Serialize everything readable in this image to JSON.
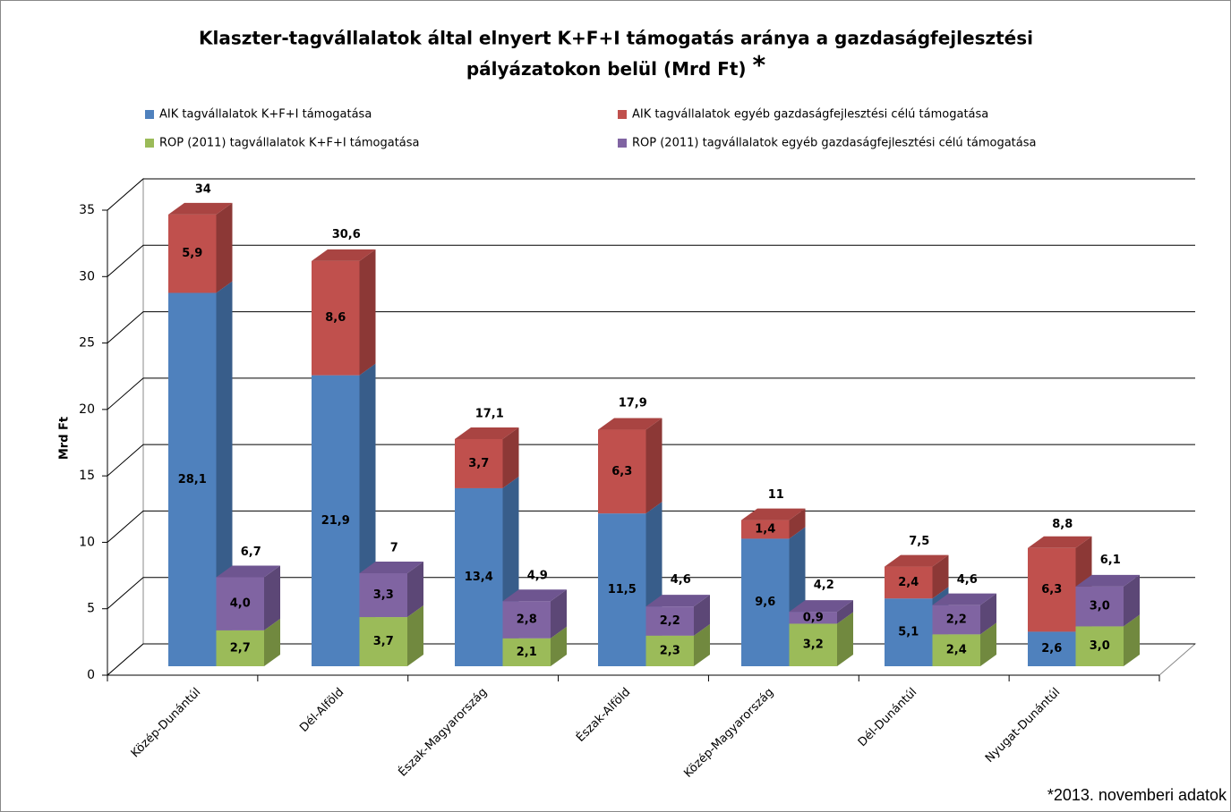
{
  "chart_data": {
    "type": "bar3d",
    "title": [
      "Klaszter-tagvállalatok által elnyert K+F+I támogatás aránya a gazdaságfejlesztési",
      "pályázatokon belül (Mrd Ft)"
    ],
    "title_mark": "*",
    "y_label": "Mrd Ft",
    "footnote": "*2013. novemberi adatok",
    "categories": [
      "Közép-Dunántúl",
      "Dél-Alföld",
      "Észak-Magyarország",
      "Észak-Alföld",
      "Közép-Magyarország",
      "Dél-Dunántúl",
      "Nyugat-Dunántúl"
    ],
    "series": [
      {
        "name": "AIK tagvállalatok K+F+I támogatása",
        "color": "#4f81bd",
        "side": "#385d8a",
        "top": "#6c97cc",
        "values": [
          28.1,
          21.9,
          13.4,
          11.5,
          9.6,
          5.1,
          2.6
        ],
        "value_labels": [
          "28,1",
          "21,9",
          "13,4",
          "11,5",
          "9,6",
          "5,1",
          "2,6"
        ]
      },
      {
        "name": "AIK tagvállalatok egyéb gazdaságfejlesztési célú támogatása",
        "color": "#c0504d",
        "side": "#8c3836",
        "top": "#a94442",
        "values": [
          5.9,
          8.6,
          3.7,
          6.3,
          1.4,
          2.4,
          6.3
        ],
        "value_labels": [
          "5,9",
          "8,6",
          "3,7",
          "6,3",
          "1,4",
          "2,4",
          "6,3"
        ]
      },
      {
        "name": "ROP (2011) tagvállalatok K+F+I támogatása",
        "color": "#9bbb59",
        "side": "#71893f",
        "top": "#b0cc78",
        "values": [
          2.7,
          3.7,
          2.1,
          2.3,
          3.2,
          2.4,
          3.0
        ],
        "value_labels": [
          "2,7",
          "3,7",
          "2,1",
          "2,3",
          "3,2",
          "2,4",
          "3,0"
        ]
      },
      {
        "name": "ROP (2011) tagvállalatok egyéb gazdaságfejlesztési célú támogatása",
        "color": "#8064a2",
        "side": "#5c4776",
        "top": "#6e5590",
        "values": [
          4.0,
          3.3,
          2.8,
          2.2,
          0.9,
          2.2,
          3.0
        ],
        "value_labels": [
          "4,0",
          "3,3",
          "2,8",
          "2,2",
          "0,9",
          "2,2",
          "3,0"
        ]
      }
    ],
    "totals": [
      {
        "values": [
          34,
          30.6,
          17.1,
          17.9,
          11,
          7.5,
          8.8
        ],
        "value_labels": [
          "34",
          "30,6",
          "17,1",
          "17,9",
          "11",
          "7,5",
          "8,8"
        ]
      },
      {
        "values": [
          6.7,
          7,
          4.9,
          4.6,
          4.2,
          4.6,
          6.1
        ],
        "value_labels": [
          "6,7",
          "7",
          "4,9",
          "4,6",
          "4,2",
          "4,6",
          "6,1"
        ]
      }
    ],
    "ylim": [
      0,
      35
    ],
    "yticks": [
      0,
      5,
      10,
      15,
      20,
      25,
      30,
      35
    ],
    "grid": true
  }
}
